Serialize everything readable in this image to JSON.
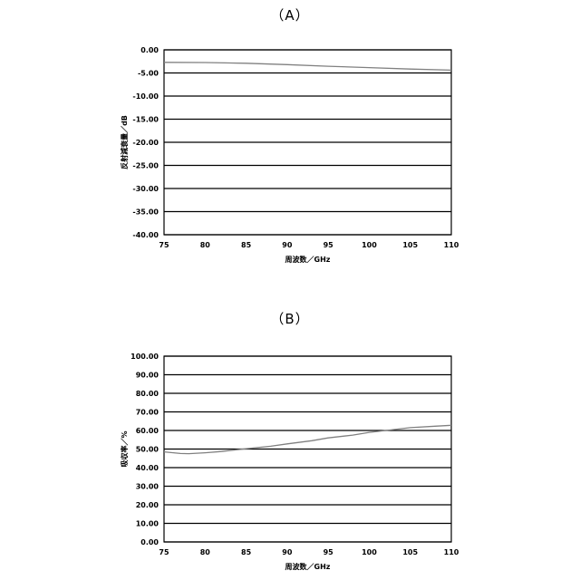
{
  "charts": {
    "a_label": "（A）",
    "b_label": "（B）"
  },
  "chart_data": [
    {
      "type": "line",
      "panel": "（A）",
      "xlabel": "周波数／GHz",
      "ylabel": "反射減衰量／dB",
      "xlim": [
        75,
        110
      ],
      "ylim": [
        -40,
        0
      ],
      "xticks": [
        "75",
        "80",
        "85",
        "90",
        "95",
        "100",
        "105",
        "110"
      ],
      "yticks": [
        "0.00",
        "-5.00",
        "-10.00",
        "-15.00",
        "-20.00",
        "-25.00",
        "-30.00",
        "-35.00",
        "-40.00"
      ],
      "grid": "horizontal",
      "line_color": "#808080",
      "series": [
        {
          "x": [
            75,
            80,
            85,
            90,
            95,
            100,
            105,
            110
          ],
          "y": [
            -2.7,
            -2.75,
            -2.9,
            -3.2,
            -3.55,
            -3.85,
            -4.15,
            -4.4
          ]
        }
      ]
    },
    {
      "type": "line",
      "panel": "（B）",
      "xlabel": "周波数／GHz",
      "ylabel": "吸収率／%",
      "xlim": [
        75,
        110
      ],
      "ylim": [
        0,
        100
      ],
      "xticks": [
        "75",
        "80",
        "85",
        "90",
        "95",
        "100",
        "105",
        "110"
      ],
      "yticks": [
        "100.00",
        "90.00",
        "80.00",
        "70.00",
        "60.00",
        "50.00",
        "40.00",
        "30.00",
        "20.00",
        "10.00",
        "0.00"
      ],
      "grid": "horizontal",
      "line_color": "#808080",
      "series": [
        {
          "x": [
            75,
            77,
            78,
            80,
            82,
            85,
            88,
            90,
            93,
            95,
            98,
            100,
            103,
            105,
            108,
            110
          ],
          "y": [
            48.5,
            47.6,
            47.5,
            48.0,
            48.7,
            50.2,
            51.5,
            52.8,
            54.5,
            56.0,
            57.5,
            59.0,
            60.5,
            61.5,
            62.3,
            62.8
          ]
        }
      ]
    }
  ]
}
